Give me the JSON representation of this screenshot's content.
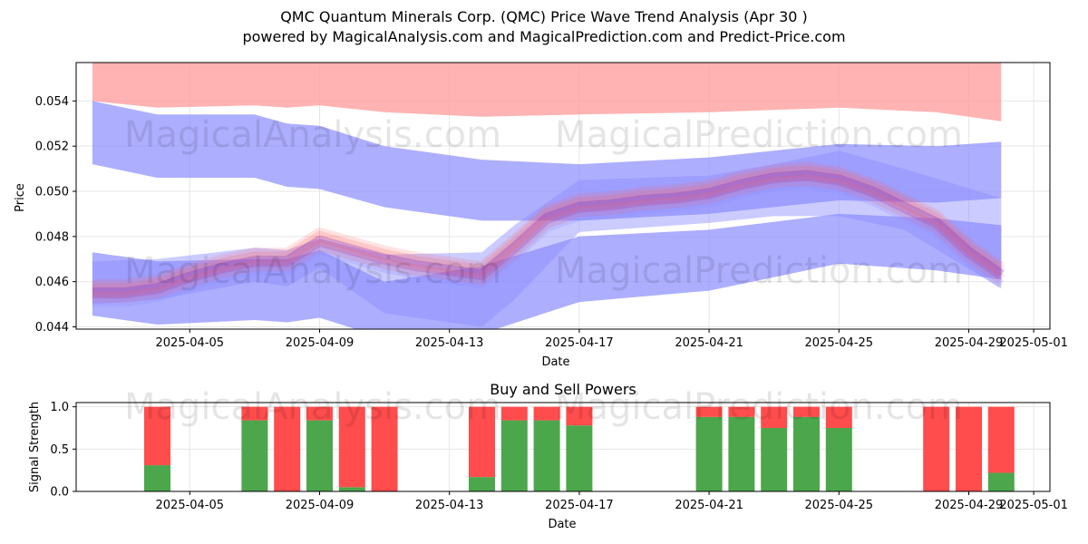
{
  "title_line1": "QMC Quantum Minerals Corp. (QMC) Price Wave Trend Analysis (Apr 30 )",
  "title_line2": "powered by MagicalAnalysis.com and MagicalPrediction.com and Predict-Price.com",
  "watermarks": [
    "MagicalAnalysis.com",
    "MagicalPrediction.com"
  ],
  "colors": {
    "upper_band": "#ff9999",
    "blue_band": "#8c8cff",
    "buy": "#4ca64c",
    "sell": "#ff4c4c",
    "wave_red": "#ff6666",
    "wave_purple": "#9933aa"
  },
  "chart_data": [
    {
      "type": "area",
      "title": "",
      "xlabel": "Date",
      "ylabel": "Price",
      "ylim": [
        0.0439,
        0.0557
      ],
      "xlim": [
        "2025-04-01T12:00",
        "2025-05-01T12:00"
      ],
      "xticks": [
        "2025-04-05",
        "2025-04-09",
        "2025-04-13",
        "2025-04-17",
        "2025-04-21",
        "2025-04-25",
        "2025-04-29",
        "2025-05-01"
      ],
      "yticks": [
        0.044,
        0.046,
        0.048,
        0.05,
        0.052,
        0.054
      ],
      "grid": true,
      "series": [
        {
          "name": "upper red band",
          "x": [
            "04-02",
            "04-04",
            "04-07",
            "04-08",
            "04-09",
            "04-11",
            "04-14",
            "04-17",
            "04-21",
            "04-25",
            "04-28",
            "04-30"
          ],
          "upper": [
            0.0557,
            0.0557,
            0.0557,
            0.0557,
            0.0557,
            0.0557,
            0.0557,
            0.0557,
            0.0557,
            0.0557,
            0.0557,
            0.0557
          ],
          "lower": [
            0.054,
            0.0537,
            0.0538,
            0.0537,
            0.0538,
            0.0535,
            0.0533,
            0.0534,
            0.0535,
            0.0537,
            0.0535,
            0.0531
          ]
        },
        {
          "name": "upper blue band",
          "x": [
            "04-02",
            "04-04",
            "04-07",
            "04-08",
            "04-09",
            "04-11",
            "04-14",
            "04-17",
            "04-21",
            "04-25",
            "04-28",
            "04-30"
          ],
          "upper": [
            0.054,
            0.0534,
            0.0534,
            0.053,
            0.0529,
            0.052,
            0.0514,
            0.0512,
            0.0515,
            0.0521,
            0.052,
            0.0522
          ],
          "lower": [
            0.0512,
            0.0506,
            0.0506,
            0.0502,
            0.0501,
            0.0493,
            0.0487,
            0.0487,
            0.049,
            0.0496,
            0.0495,
            0.0497
          ]
        },
        {
          "name": "lower blue band",
          "x": [
            "04-02",
            "04-04",
            "04-07",
            "04-08",
            "04-09",
            "04-11",
            "04-14",
            "04-17",
            "04-21",
            "04-25",
            "04-28",
            "04-30"
          ],
          "upper": [
            0.0473,
            0.0469,
            0.047,
            0.047,
            0.0474,
            0.046,
            0.0467,
            0.048,
            0.0483,
            0.049,
            0.0488,
            0.0485
          ],
          "lower": [
            0.0445,
            0.0441,
            0.0443,
            0.0442,
            0.0444,
            0.0435,
            0.0437,
            0.0451,
            0.0456,
            0.0468,
            0.0465,
            0.0461
          ]
        },
        {
          "name": "mid blue band",
          "x": [
            "04-02",
            "04-04",
            "04-07",
            "04-08",
            "04-09",
            "04-11",
            "04-14",
            "04-15",
            "04-17",
            "04-21",
            "04-23",
            "04-25",
            "04-27",
            "04-30"
          ],
          "upper": [
            0.0469,
            0.047,
            0.0475,
            0.0474,
            0.0479,
            0.0472,
            0.0473,
            0.0485,
            0.0505,
            0.0507,
            0.0512,
            0.0518,
            0.051,
            0.0497
          ],
          "lower": [
            0.045,
            0.0452,
            0.046,
            0.0458,
            0.0466,
            0.0446,
            0.044,
            0.0452,
            0.0482,
            0.0486,
            0.0489,
            0.0489,
            0.0483,
            0.0457
          ]
        },
        {
          "name": "wave trend",
          "x": [
            "04-02",
            "04-03",
            "04-04",
            "04-05",
            "04-06",
            "04-07",
            "04-08",
            "04-09",
            "04-10",
            "04-11",
            "04-12",
            "04-13",
            "04-14",
            "04-15",
            "04-16",
            "04-17",
            "04-18",
            "04-19",
            "04-20",
            "04-21",
            "04-22",
            "04-23",
            "04-24",
            "04-25",
            "04-26",
            "04-27",
            "04-28",
            "04-29",
            "04-30"
          ],
          "values": [
            0.0455,
            0.0455,
            0.0457,
            0.0462,
            0.0466,
            0.0469,
            0.0469,
            0.0478,
            0.0474,
            0.047,
            0.0467,
            0.0465,
            0.0463,
            0.0475,
            0.0488,
            0.0493,
            0.0494,
            0.0496,
            0.0497,
            0.0499,
            0.0503,
            0.0506,
            0.0507,
            0.0505,
            0.05,
            0.0493,
            0.0486,
            0.0473,
            0.0463
          ]
        }
      ]
    },
    {
      "type": "bar",
      "title": "Buy and Sell Powers",
      "xlabel": "Date",
      "ylabel": "Signal Strength",
      "ylim": [
        0,
        1.05
      ],
      "yticks": [
        "0.0",
        "0.5",
        "1.0"
      ],
      "xticks": [
        "2025-04-05",
        "2025-04-09",
        "2025-04-13",
        "2025-04-17",
        "2025-04-21",
        "2025-04-25",
        "2025-04-29",
        "2025-05-01"
      ],
      "categories": [
        "04-04",
        "04-07",
        "04-08",
        "04-09",
        "04-10",
        "04-11",
        "04-14",
        "04-15",
        "04-16",
        "04-17",
        "04-21",
        "04-22",
        "04-23",
        "04-24",
        "04-25",
        "04-28",
        "04-29",
        "04-30"
      ],
      "series": [
        {
          "name": "Buy",
          "values": [
            0.31,
            0.84,
            0.0,
            0.84,
            0.05,
            0.0,
            0.17,
            0.84,
            0.84,
            0.78,
            0.88,
            0.88,
            0.75,
            0.88,
            0.75,
            0.0,
            0.0,
            0.22
          ]
        },
        {
          "name": "Sell",
          "values": [
            0.69,
            0.16,
            1.0,
            0.16,
            0.95,
            1.0,
            0.83,
            0.16,
            0.16,
            0.22,
            0.12,
            0.12,
            0.25,
            0.12,
            0.25,
            1.0,
            1.0,
            0.78
          ]
        }
      ]
    }
  ]
}
